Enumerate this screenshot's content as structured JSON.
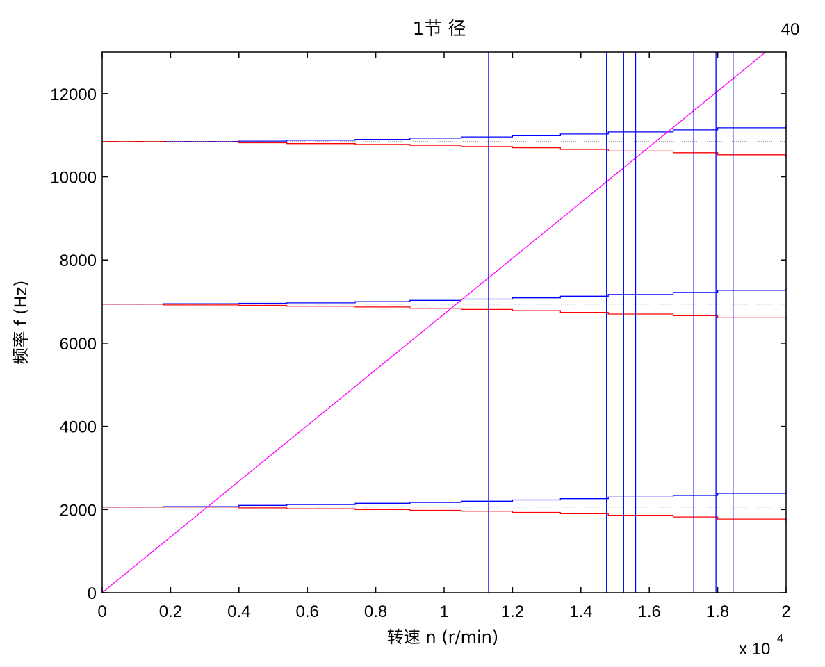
{
  "chart_data": {
    "type": "line",
    "title": "1节 径",
    "corner_label": "40",
    "xlabel": "转速   n (r/min)",
    "ylabel": "频率   f (Hz)",
    "x_multiplier": "x 10",
    "x_multiplier_exp": "4",
    "xlim": [
      0,
      20000
    ],
    "ylim": [
      0,
      13000
    ],
    "x_tick_values": [
      0,
      2000,
      4000,
      6000,
      8000,
      10000,
      12000,
      14000,
      16000,
      18000,
      20000
    ],
    "x_tick_labels": [
      "0",
      "0.2",
      "0.4",
      "0.6",
      "0.8",
      "1",
      "1.2",
      "1.4",
      "1.6",
      "1.8",
      "2"
    ],
    "y_tick_values": [
      0,
      2000,
      4000,
      6000,
      8000,
      10000,
      12000
    ],
    "y_tick_labels": [
      "0",
      "2000",
      "4000",
      "6000",
      "8000",
      "10000",
      "12000"
    ],
    "grid": false,
    "series": [
      {
        "color": "#0000ff",
        "style": "step",
        "x": [
          0,
          1800,
          4000,
          5400,
          7400,
          9000,
          10500,
          12000,
          13400,
          14800,
          16700,
          18000,
          20000
        ],
        "y": [
          2060,
          2070,
          2100,
          2120,
          2150,
          2170,
          2200,
          2230,
          2260,
          2300,
          2340,
          2390,
          2450
        ]
      },
      {
        "color": "#ff0000",
        "style": "step",
        "x": [
          0,
          1800,
          4000,
          5400,
          7400,
          9000,
          10500,
          12000,
          13400,
          14800,
          16700,
          18000,
          20000
        ],
        "y": [
          2060,
          2060,
          2040,
          2020,
          2000,
          1980,
          1960,
          1930,
          1900,
          1860,
          1820,
          1770,
          1700
        ]
      },
      {
        "color": "#0000ff",
        "style": "step",
        "x": [
          0,
          1800,
          4000,
          5400,
          7400,
          9000,
          10500,
          12000,
          13400,
          14800,
          16700,
          18000,
          20000
        ],
        "y": [
          6940,
          6950,
          6960,
          6970,
          7000,
          7030,
          7060,
          7090,
          7130,
          7170,
          7220,
          7270,
          7320
        ]
      },
      {
        "color": "#ff0000",
        "style": "step",
        "x": [
          0,
          1800,
          4000,
          5400,
          7400,
          9000,
          10500,
          12000,
          13400,
          14800,
          16700,
          18000,
          20000
        ],
        "y": [
          6940,
          6920,
          6910,
          6890,
          6870,
          6840,
          6810,
          6780,
          6740,
          6700,
          6660,
          6610,
          6560
        ]
      },
      {
        "color": "#0000ff",
        "style": "step",
        "x": [
          0,
          1800,
          4000,
          5400,
          7400,
          9000,
          10500,
          12000,
          13400,
          14800,
          16700,
          18000,
          20000
        ],
        "y": [
          10850,
          10850,
          10860,
          10880,
          10900,
          10930,
          10960,
          10990,
          11030,
          11080,
          11130,
          11180,
          11240
        ]
      },
      {
        "color": "#ff0000",
        "style": "step",
        "x": [
          0,
          1800,
          4000,
          5400,
          7400,
          9000,
          10500,
          12000,
          13400,
          14800,
          16700,
          18000,
          20000
        ],
        "y": [
          10850,
          10840,
          10820,
          10800,
          10780,
          10760,
          10730,
          10700,
          10660,
          10620,
          10580,
          10530,
          10470
        ]
      },
      {
        "color": "#ff00ff",
        "style": "line",
        "x": [
          0,
          19400
        ],
        "y": [
          0,
          13000
        ]
      },
      {
        "color": "#888888",
        "style": "dotted",
        "x": [
          0,
          20000
        ],
        "y": [
          2060,
          2060
        ]
      },
      {
        "color": "#888888",
        "style": "dotted",
        "x": [
          0,
          20000
        ],
        "y": [
          6940,
          6940
        ]
      },
      {
        "color": "#888888",
        "style": "dotted",
        "x": [
          0,
          20000
        ],
        "y": [
          10850,
          10850
        ]
      }
    ],
    "vertical_lines": {
      "color": "#0000ff",
      "x": [
        11300,
        14750,
        15250,
        15600,
        17300,
        17950,
        18450
      ]
    }
  }
}
